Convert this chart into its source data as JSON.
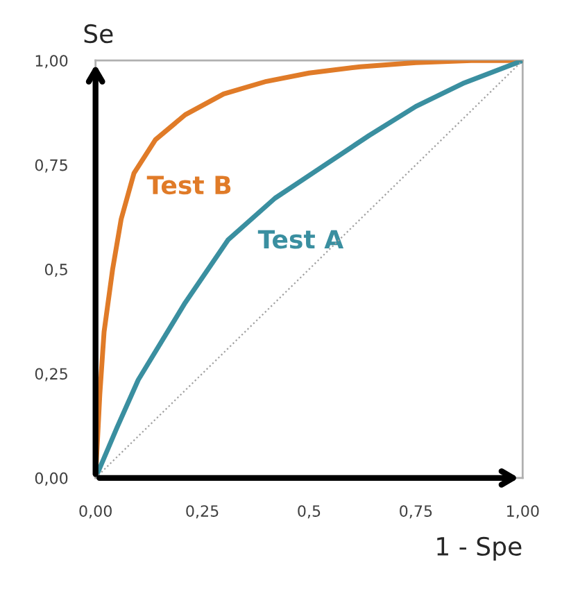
{
  "chart_data": {
    "type": "line",
    "xlabel": "1 - Spe",
    "ylabel": "Se",
    "series": [
      {
        "name": "Test B",
        "color": "#e07b28",
        "line_style": "solid",
        "x": [
          0,
          0.01,
          0.02,
          0.04,
          0.06,
          0.09,
          0.14,
          0.21,
          0.3,
          0.4,
          0.5,
          0.62,
          0.75,
          0.88,
          1.0
        ],
        "values": [
          0,
          0.2,
          0.35,
          0.5,
          0.62,
          0.73,
          0.81,
          0.87,
          0.92,
          0.95,
          0.97,
          0.985,
          0.995,
          1.0,
          1.0
        ]
      },
      {
        "name": "Test A",
        "color": "#3a8fa0",
        "line_style": "solid",
        "x": [
          0,
          0.05,
          0.1,
          0.21,
          0.31,
          0.42,
          0.53,
          0.64,
          0.75,
          0.86,
          1.0
        ],
        "values": [
          0,
          0.12,
          0.235,
          0.42,
          0.57,
          0.67,
          0.745,
          0.82,
          0.89,
          0.945,
          1.0
        ]
      },
      {
        "color": "#a0a0a0",
        "line_style": "dotted",
        "x": [
          0,
          1
        ],
        "values": [
          0,
          1
        ]
      }
    ],
    "xlim": [
      0,
      1
    ],
    "ylim": [
      0,
      1
    ],
    "xticks": [
      {
        "value": 0,
        "label": "0,00"
      },
      {
        "value": 0.25,
        "label": "0,25"
      },
      {
        "value": 0.5,
        "label": "0,5"
      },
      {
        "value": 0.75,
        "label": "0,75"
      },
      {
        "value": 1,
        "label": "1,00"
      }
    ],
    "yticks": [
      {
        "value": 0,
        "label": "0,00"
      },
      {
        "value": 0.25,
        "label": "0,25"
      },
      {
        "value": 0.5,
        "label": "0,5"
      },
      {
        "value": 0.75,
        "label": "0,75"
      },
      {
        "value": 1,
        "label": "1,00"
      }
    ],
    "grid": false,
    "legend": false,
    "marker": "none"
  }
}
